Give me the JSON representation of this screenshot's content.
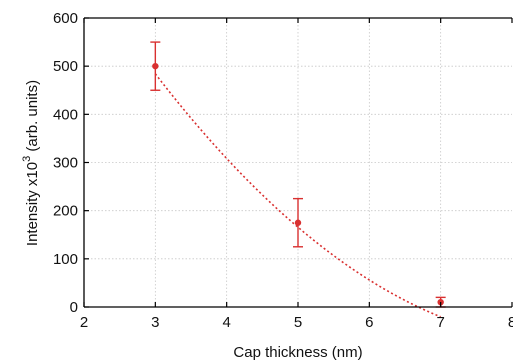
{
  "chart_data": {
    "type": "scatter",
    "title": "",
    "xlabel": "Cap thickness (nm)",
    "ylabel_main": "Intensity x10",
    "ylabel_exp": "3",
    "ylabel_suffix": " (arb. units)",
    "xlim": [
      2,
      8
    ],
    "ylim": [
      0,
      600
    ],
    "xticks": [
      2,
      3,
      4,
      5,
      6,
      7,
      8
    ],
    "yticks": [
      0,
      100,
      200,
      300,
      400,
      500,
      600
    ],
    "grid": true,
    "series": [
      {
        "x": [
          3,
          5,
          7
        ],
        "y": [
          500,
          175,
          10
        ],
        "yerr": [
          50,
          50,
          10
        ],
        "color": "#d93030"
      }
    ],
    "fit": {
      "style": "dotted",
      "color": "#d93030",
      "x_range": [
        3,
        7
      ],
      "coefficients": [
        1210.3,
        -291.75,
        16.5625
      ]
    }
  }
}
